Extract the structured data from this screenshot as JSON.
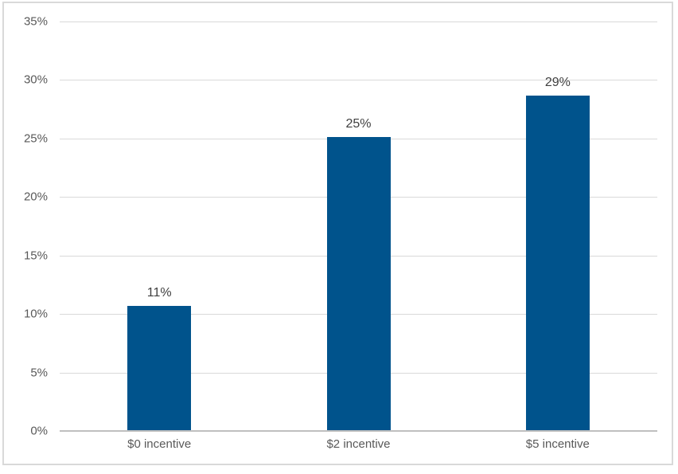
{
  "chart_data": {
    "type": "bar",
    "title": "",
    "xlabel": "",
    "ylabel": "",
    "categories": [
      "$0 incentive",
      "$2 incentive",
      "$5 incentive"
    ],
    "values": [
      10.7,
      25.1,
      28.7
    ],
    "data_labels": [
      "11%",
      "25%",
      "29%"
    ],
    "ylim": [
      0,
      35
    ],
    "y_tick_step": 5,
    "y_ticks": [
      "0%",
      "5%",
      "10%",
      "15%",
      "20%",
      "25%",
      "30%",
      "35%"
    ],
    "grid": "horizontal",
    "legend": "none",
    "colors": {
      "bar": "#00538C",
      "gridline": "#D9D9D9",
      "axis_line": "#BFBFBF",
      "tick_text": "#595959",
      "data_label_text": "#404040",
      "frame_border": "#D9D9D9",
      "background": "#FFFFFF"
    }
  }
}
